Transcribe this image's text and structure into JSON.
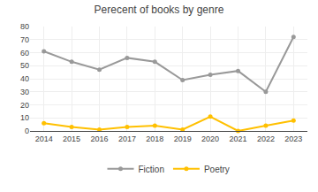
{
  "chart_data": {
    "type": "line",
    "title": "Perecent of books by genre",
    "x": [
      2014,
      2015,
      2016,
      2017,
      2018,
      2019,
      2020,
      2021,
      2022,
      2023
    ],
    "series": [
      {
        "name": "Fiction",
        "color": "#999999",
        "marker": "circle",
        "values": [
          61,
          53,
          47,
          56,
          53,
          39,
          43,
          46,
          30,
          72
        ]
      },
      {
        "name": "Poetry",
        "color": "#FFC000",
        "marker": "circle",
        "values": [
          6,
          3,
          1,
          3,
          4,
          1,
          11,
          0,
          4,
          8
        ]
      }
    ],
    "xlim": [
      2013.5,
      2023.5
    ],
    "xticks": [
      2014,
      2015,
      2016,
      2017,
      2018,
      2019,
      2020,
      2021,
      2022,
      2023
    ],
    "ylim": [
      0,
      80
    ],
    "yticks": [
      0,
      10,
      20,
      30,
      40,
      50,
      60,
      70,
      80
    ],
    "grid": true,
    "legend": "bottom"
  }
}
